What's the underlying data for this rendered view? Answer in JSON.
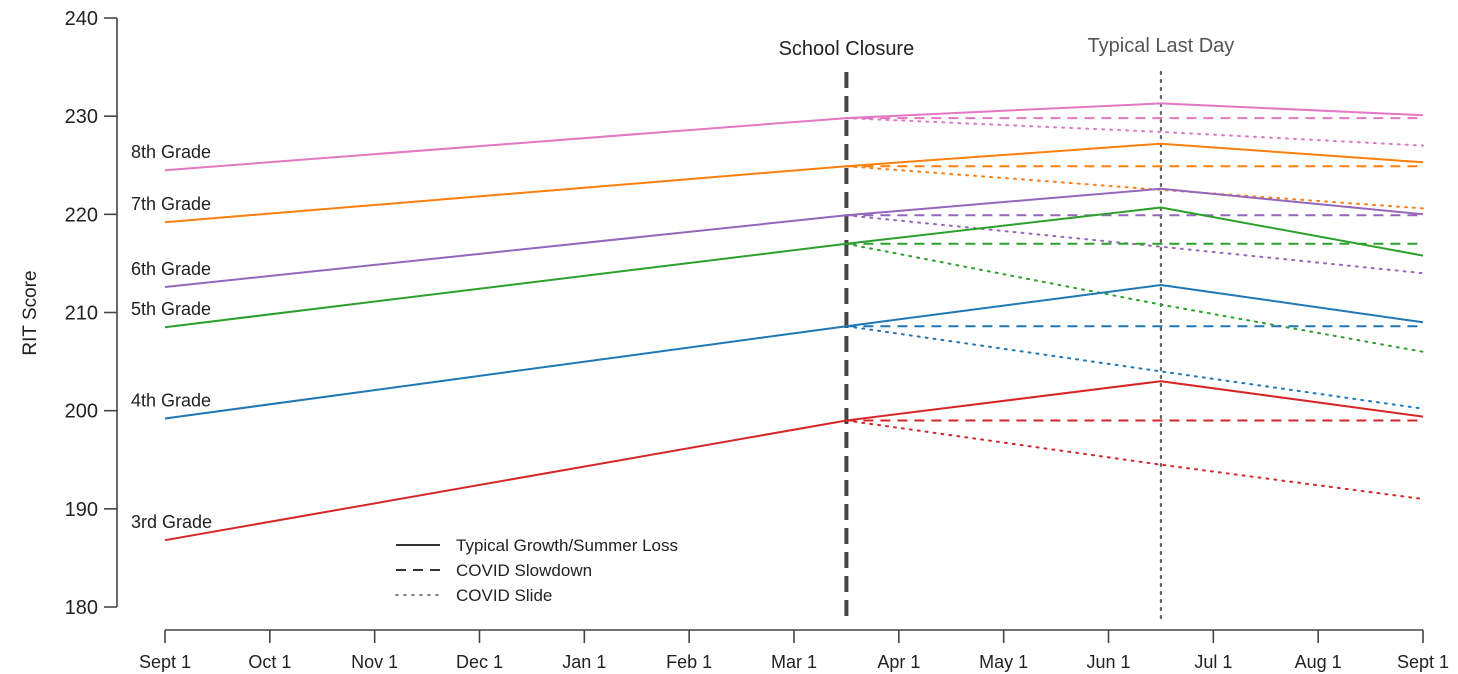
{
  "chart_data": {
    "type": "line",
    "ylabel": "RIT Score",
    "xlabel": "",
    "ylim": [
      180,
      240
    ],
    "yticks": [
      180,
      190,
      200,
      210,
      220,
      230,
      240
    ],
    "x_ticks": [
      "Sept 1",
      "Oct 1",
      "Nov 1",
      "Dec 1",
      "Jan 1",
      "Feb 1",
      "Mar 1",
      "Apr 1",
      "May 1",
      "Jun 1",
      "Jul 1",
      "Aug 1",
      "Sept 1"
    ],
    "markers": [
      {
        "label": "School Closure",
        "x": 6.5,
        "style": "dashed",
        "color": "#444444"
      },
      {
        "label": "Typical Last Day",
        "x": 9.5,
        "style": "dotted",
        "color": "#666666"
      }
    ],
    "line_styles": [
      {
        "label": "Typical Growth/Summer Loss",
        "dash": "solid"
      },
      {
        "label": "COVID Slowdown",
        "dash": "dashed"
      },
      {
        "label": "COVID Slide",
        "dash": "dotted"
      }
    ],
    "series": [
      {
        "name": "8th Grade",
        "color": "#e377c2",
        "typical": {
          "x": [
            0,
            6.5,
            9.5,
            12
          ],
          "y": [
            224.5,
            229.8,
            231.3,
            230.1
          ]
        },
        "slowdown": {
          "x": [
            6.5,
            12
          ],
          "y": [
            229.8,
            229.8
          ]
        },
        "slide": {
          "x": [
            6.5,
            9.5,
            12
          ],
          "y": [
            229.8,
            228.4,
            227.0
          ]
        }
      },
      {
        "name": "7th Grade",
        "color": "#ff7f0e",
        "typical": {
          "x": [
            0,
            6.5,
            9.5,
            12
          ],
          "y": [
            219.2,
            224.9,
            227.2,
            225.3
          ]
        },
        "slowdown": {
          "x": [
            6.5,
            12
          ],
          "y": [
            224.9,
            224.9
          ]
        },
        "slide": {
          "x": [
            6.5,
            9.5,
            12
          ],
          "y": [
            224.9,
            222.5,
            220.6
          ]
        }
      },
      {
        "name": "6th Grade",
        "color": "#9467bd",
        "typical": {
          "x": [
            0,
            6.5,
            9.5,
            12
          ],
          "y": [
            212.6,
            219.9,
            222.6,
            220.0
          ]
        },
        "slowdown": {
          "x": [
            6.5,
            12
          ],
          "y": [
            219.9,
            219.9
          ]
        },
        "slide": {
          "x": [
            6.5,
            9.5,
            12
          ],
          "y": [
            219.9,
            216.7,
            214.0
          ]
        }
      },
      {
        "name": "5th Grade",
        "color": "#2ca02c",
        "typical": {
          "x": [
            0,
            6.5,
            9.5,
            12
          ],
          "y": [
            208.5,
            217.0,
            220.7,
            215.8
          ]
        },
        "slowdown": {
          "x": [
            6.5,
            12
          ],
          "y": [
            217.0,
            217.0
          ]
        },
        "slide": {
          "x": [
            6.5,
            9.5,
            12
          ],
          "y": [
            217.0,
            210.8,
            206.0
          ]
        }
      },
      {
        "name": "4th Grade",
        "color": "#1f77b4",
        "typical": {
          "x": [
            0,
            6.5,
            9.5,
            12
          ],
          "y": [
            199.2,
            208.6,
            212.8,
            209.0
          ]
        },
        "slowdown": {
          "x": [
            6.5,
            12
          ],
          "y": [
            208.6,
            208.6
          ]
        },
        "slide": {
          "x": [
            6.5,
            9.5,
            12
          ],
          "y": [
            208.6,
            204.0,
            200.2
          ]
        }
      },
      {
        "name": "3rd Grade",
        "color": "#d62728",
        "typical": {
          "x": [
            0,
            6.5,
            9.5,
            12
          ],
          "y": [
            186.8,
            199.0,
            203.0,
            199.4
          ]
        },
        "slowdown": {
          "x": [
            6.5,
            12
          ],
          "y": [
            199.0,
            199.0
          ]
        },
        "slide": {
          "x": [
            6.5,
            9.5,
            12
          ],
          "y": [
            199.0,
            194.5,
            191.0
          ]
        }
      }
    ]
  }
}
